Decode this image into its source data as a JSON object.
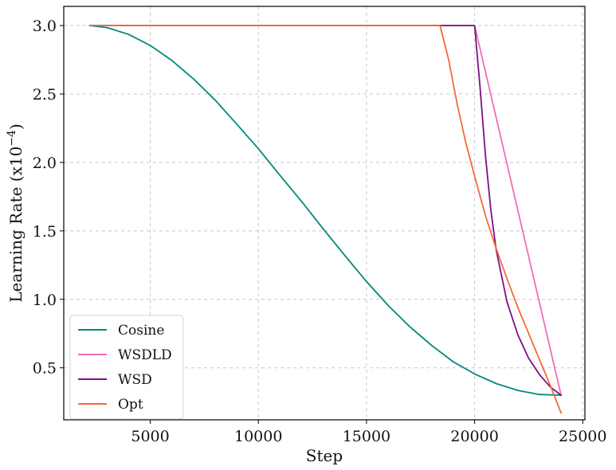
{
  "chart_data": {
    "type": "line",
    "xlabel": "Step",
    "ylabel": "Learning Rate (x10",
    "ylabel_exponent": "−4",
    "ylabel_suffix": ")",
    "xlim": [
      1000,
      25100
    ],
    "ylim": [
      0.12,
      3.14
    ],
    "x_ticks": [
      5000,
      10000,
      15000,
      20000,
      25000
    ],
    "y_ticks": [
      0.5,
      1.0,
      1.5,
      2.0,
      2.5,
      3.0
    ],
    "x_tick_labels": [
      "5000",
      "10000",
      "15000",
      "20000",
      "25000"
    ],
    "y_tick_labels": [
      "0.5",
      "1.0",
      "1.5",
      "2.0",
      "2.5",
      "3.0"
    ],
    "grid": true,
    "legend_position": "lower-left",
    "series": [
      {
        "name": "Cosine",
        "color": "#00897b",
        "x": [
          2200,
          3000,
          4000,
          5000,
          6000,
          7000,
          8000,
          9000,
          10000,
          11000,
          12000,
          13000,
          14000,
          15000,
          16000,
          17000,
          18000,
          19000,
          20000,
          21000,
          22000,
          23000,
          24000
        ],
        "y": [
          3.0,
          2.985,
          2.935,
          2.855,
          2.745,
          2.61,
          2.455,
          2.28,
          2.1,
          1.905,
          1.715,
          1.515,
          1.32,
          1.13,
          0.955,
          0.8,
          0.665,
          0.545,
          0.455,
          0.385,
          0.335,
          0.305,
          0.3
        ]
      },
      {
        "name": "WSDLD",
        "color": "#f06db5",
        "x": [
          2200,
          20000,
          24000
        ],
        "y": [
          3.0,
          3.0,
          0.3
        ]
      },
      {
        "name": "WSD",
        "color": "#7b0f86",
        "x": [
          2200,
          20000,
          20250,
          20500,
          20750,
          21000,
          21500,
          22000,
          22500,
          23000,
          23500,
          24000
        ],
        "y": [
          3.0,
          3.0,
          2.55,
          2.05,
          1.65,
          1.36,
          0.98,
          0.74,
          0.57,
          0.45,
          0.36,
          0.3
        ]
      },
      {
        "name": "Opt",
        "color": "#f4683c",
        "x": [
          2200,
          18400,
          18800,
          19200,
          19600,
          20000,
          20500,
          21000,
          21500,
          22000,
          22500,
          23000,
          23500,
          24000
        ],
        "y": [
          3.0,
          3.0,
          2.75,
          2.42,
          2.14,
          1.9,
          1.61,
          1.37,
          1.15,
          0.94,
          0.75,
          0.56,
          0.37,
          0.17
        ]
      }
    ]
  }
}
